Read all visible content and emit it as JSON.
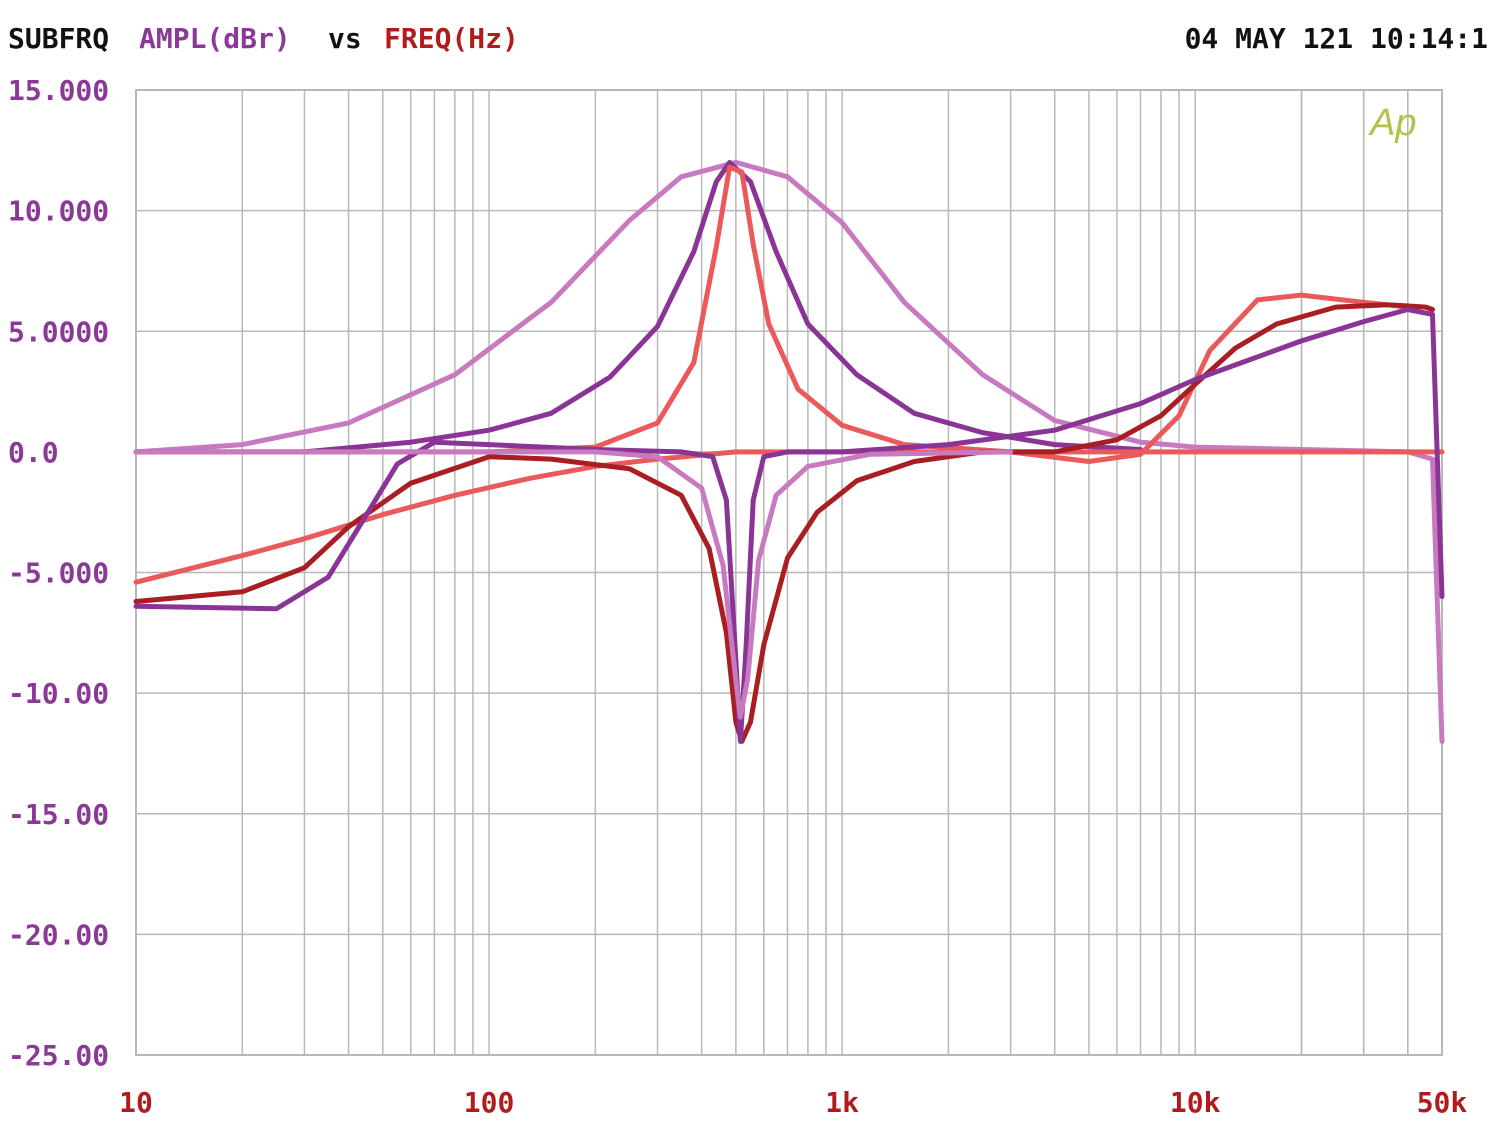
{
  "header": {
    "prefix": "SUBFRQ",
    "ylabel": "AMPL(dBr)",
    "vs": "vs",
    "xlabel": "FREQ(Hz)",
    "timestamp": "04 MAY 121 10:14:1"
  },
  "logo": "Ap",
  "colors": {
    "background": "#ffffff",
    "grid": "#b8b8b8",
    "text_dark": "#111111",
    "ylabel": "#8a3a96",
    "xlabel": "#b01c1c",
    "logo": "#b4c24a"
  },
  "chart_data": {
    "type": "line",
    "x_scale": "log",
    "xlim": [
      10,
      50000
    ],
    "ylim": [
      -25,
      15
    ],
    "grid": true,
    "x_ticks": [
      {
        "value": 10,
        "label": "10"
      },
      {
        "value": 100,
        "label": "100"
      },
      {
        "value": 1000,
        "label": "1k"
      },
      {
        "value": 10000,
        "label": "10k"
      },
      {
        "value": 50000,
        "label": "50k"
      }
    ],
    "y_ticks": [
      {
        "value": 15,
        "label": "15.000"
      },
      {
        "value": 10,
        "label": "10.000"
      },
      {
        "value": 5,
        "label": "5.0000"
      },
      {
        "value": 0,
        "label": "0.0"
      },
      {
        "value": -5,
        "label": "-5.000"
      },
      {
        "value": -10,
        "label": "-10.00"
      },
      {
        "value": -15,
        "label": "-15.00"
      },
      {
        "value": -20,
        "label": "-20.00"
      },
      {
        "value": -25,
        "label": "-25.00"
      }
    ],
    "series": [
      {
        "color": "#c77abf",
        "points": [
          [
            10,
            0
          ],
          [
            20,
            0.3
          ],
          [
            40,
            1.2
          ],
          [
            80,
            3.2
          ],
          [
            150,
            6.2
          ],
          [
            250,
            9.6
          ],
          [
            350,
            11.4
          ],
          [
            500,
            12
          ],
          [
            700,
            11.4
          ],
          [
            1000,
            9.5
          ],
          [
            1500,
            6.2
          ],
          [
            2500,
            3.2
          ],
          [
            4000,
            1.3
          ],
          [
            7000,
            0.4
          ],
          [
            10000,
            0.2
          ],
          [
            20000,
            0.1
          ],
          [
            40000,
            0
          ],
          [
            47000,
            -0.3
          ],
          [
            50000,
            -12
          ]
        ]
      },
      {
        "color": "#8a3596",
        "points": [
          [
            10,
            0
          ],
          [
            30,
            0
          ],
          [
            60,
            0.4
          ],
          [
            100,
            0.9
          ],
          [
            150,
            1.6
          ],
          [
            220,
            3.1
          ],
          [
            300,
            5.2
          ],
          [
            380,
            8.3
          ],
          [
            440,
            11.2
          ],
          [
            480,
            12
          ],
          [
            550,
            11.2
          ],
          [
            650,
            8.3
          ],
          [
            800,
            5.3
          ],
          [
            1100,
            3.2
          ],
          [
            1600,
            1.6
          ],
          [
            2500,
            0.8
          ],
          [
            4000,
            0.3
          ],
          [
            7000,
            0.1
          ]
        ]
      },
      {
        "color": "#ea5a5a",
        "points": [
          [
            10,
            0
          ],
          [
            100,
            0
          ],
          [
            200,
            0.2
          ],
          [
            300,
            1.2
          ],
          [
            380,
            3.7
          ],
          [
            440,
            8.5
          ],
          [
            480,
            11.8
          ],
          [
            520,
            11.6
          ],
          [
            560,
            8.6
          ],
          [
            620,
            5.3
          ],
          [
            750,
            2.6
          ],
          [
            1000,
            1.1
          ],
          [
            1500,
            0.3
          ],
          [
            3000,
            0
          ],
          [
            5000,
            -0.4
          ],
          [
            7000,
            -0.1
          ],
          [
            9000,
            1.5
          ],
          [
            11000,
            4.2
          ],
          [
            15000,
            6.3
          ],
          [
            20000,
            6.5
          ],
          [
            30000,
            6.2
          ],
          [
            40000,
            6
          ]
        ]
      },
      {
        "color": "#ea5a5a",
        "points": [
          [
            10,
            -5.4
          ],
          [
            20,
            -4.3
          ],
          [
            30,
            -3.6
          ],
          [
            50,
            -2.6
          ],
          [
            80,
            -1.8
          ],
          [
            130,
            -1.1
          ],
          [
            200,
            -0.6
          ],
          [
            300,
            -0.3
          ],
          [
            500,
            0
          ],
          [
            1500,
            0
          ],
          [
            10000,
            0
          ],
          [
            50000,
            0
          ]
        ]
      },
      {
        "color": "#a81e22",
        "points": [
          [
            10,
            -6.2
          ],
          [
            20,
            -5.8
          ],
          [
            30,
            -4.8
          ],
          [
            40,
            -3.1
          ],
          [
            60,
            -1.3
          ],
          [
            100,
            -0.2
          ],
          [
            150,
            -0.3
          ],
          [
            250,
            -0.7
          ],
          [
            350,
            -1.8
          ],
          [
            420,
            -4
          ],
          [
            470,
            -7.5
          ],
          [
            500,
            -11.2
          ],
          [
            520,
            -12
          ],
          [
            550,
            -11.2
          ],
          [
            600,
            -8
          ],
          [
            700,
            -4.4
          ],
          [
            850,
            -2.5
          ],
          [
            1100,
            -1.2
          ],
          [
            1600,
            -0.4
          ],
          [
            2500,
            0
          ],
          [
            4000,
            0
          ],
          [
            6000,
            0.5
          ],
          [
            8000,
            1.5
          ],
          [
            10000,
            2.8
          ],
          [
            13000,
            4.3
          ],
          [
            17000,
            5.3
          ],
          [
            25000,
            6
          ],
          [
            35000,
            6.1
          ],
          [
            45000,
            6
          ],
          [
            47000,
            5.9
          ]
        ]
      },
      {
        "color": "#8a3596",
        "points": [
          [
            10,
            -6.4
          ],
          [
            25,
            -6.5
          ],
          [
            35,
            -5.2
          ],
          [
            45,
            -2.6
          ],
          [
            55,
            -0.5
          ],
          [
            70,
            0.4
          ],
          [
            100,
            0.3
          ],
          [
            200,
            0.1
          ],
          [
            350,
            0
          ],
          [
            430,
            -0.2
          ],
          [
            470,
            -2
          ],
          [
            495,
            -7.5
          ],
          [
            515,
            -12
          ],
          [
            535,
            -8
          ],
          [
            560,
            -2
          ],
          [
            600,
            -0.2
          ],
          [
            700,
            0
          ],
          [
            1000,
            0
          ],
          [
            2000,
            0.3
          ],
          [
            4000,
            0.9
          ],
          [
            7000,
            2
          ],
          [
            10000,
            3
          ],
          [
            20000,
            4.6
          ],
          [
            30000,
            5.4
          ],
          [
            40000,
            5.9
          ],
          [
            47000,
            5.7
          ],
          [
            50000,
            -6
          ]
        ]
      },
      {
        "color": "#c77abf",
        "points": [
          [
            10,
            0
          ],
          [
            100,
            0
          ],
          [
            200,
            0
          ],
          [
            300,
            -0.2
          ],
          [
            400,
            -1.5
          ],
          [
            460,
            -4.7
          ],
          [
            500,
            -9.5
          ],
          [
            515,
            -11
          ],
          [
            540,
            -9.4
          ],
          [
            580,
            -4.5
          ],
          [
            650,
            -1.8
          ],
          [
            800,
            -0.6
          ],
          [
            1200,
            -0.1
          ],
          [
            3000,
            0
          ]
        ]
      }
    ]
  }
}
